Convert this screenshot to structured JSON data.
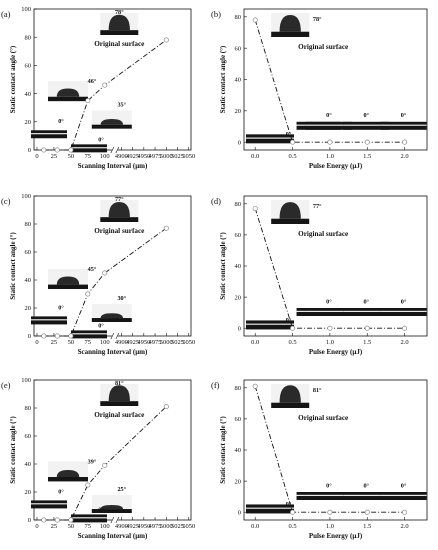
{
  "figure": {
    "line_color": "#111111",
    "photo_colors": {
      "background": "#f2f2f2",
      "droplet": "#2a2a2a",
      "substrate": "#151515"
    }
  },
  "chart_data": [
    {
      "id": "a",
      "panel_label": "(a)",
      "type": "line",
      "xlabel": "Scanning Interval (μm)",
      "ylabel": "Static contact angle (°)",
      "x_axis": "broken",
      "x_ticks_left": [
        "0",
        "25",
        "50",
        "75",
        "100"
      ],
      "x_ticks_right": [
        "4900",
        "4925",
        "4950",
        "4975",
        "5000",
        "5025",
        "5050"
      ],
      "y_ticks": [
        "0",
        "20",
        "40",
        "60",
        "80",
        "100"
      ],
      "ylim": [
        0,
        100
      ],
      "x": [
        10,
        30,
        50,
        75,
        100,
        5000
      ],
      "y": [
        0,
        0,
        0,
        35,
        46,
        78
      ],
      "annotations": {
        "original": "Original surface",
        "labels": [
          "78°",
          "46°",
          "35°",
          "0°",
          "0°"
        ]
      }
    },
    {
      "id": "b",
      "panel_label": "(b)",
      "type": "line",
      "xlabel": "Pulse Energy (μJ)",
      "ylabel": "Static contact angle (°)",
      "x_ticks": [
        "0.0",
        "0.5",
        "1.0",
        "1.5",
        "2.0"
      ],
      "y_ticks": [
        "0",
        "20",
        "40",
        "60",
        "80"
      ],
      "ylim": [
        -5,
        85
      ],
      "xlim": [
        -0.15,
        2.3
      ],
      "x": [
        0.0,
        0.5,
        1.0,
        1.5,
        2.0
      ],
      "y": [
        78,
        0,
        0,
        0,
        0
      ],
      "annotations": {
        "original": "Original surface",
        "labels": [
          "78°",
          "0°",
          "0°",
          "0°",
          "0°"
        ]
      }
    },
    {
      "id": "c",
      "panel_label": "(c)",
      "type": "line",
      "xlabel": "Scanning Interval (μm)",
      "ylabel": "Static contact angle (°)",
      "x_axis": "broken",
      "x_ticks_left": [
        "0",
        "25",
        "50",
        "75",
        "100"
      ],
      "x_ticks_right": [
        "4900",
        "4925",
        "4950",
        "4975",
        "5000",
        "5025",
        "5050"
      ],
      "y_ticks": [
        "0",
        "20",
        "40",
        "60",
        "80",
        "100"
      ],
      "ylim": [
        0,
        100
      ],
      "x": [
        10,
        30,
        50,
        75,
        100,
        5000
      ],
      "y": [
        0,
        0,
        0,
        30,
        45,
        77
      ],
      "annotations": {
        "original": "Original surface",
        "labels": [
          "77°",
          "45°",
          "30°",
          "0°",
          "0°"
        ]
      }
    },
    {
      "id": "d",
      "panel_label": "(d)",
      "type": "line",
      "xlabel": "Pulse Energy (μJ)",
      "ylabel": "Static contact angle (°)",
      "x_ticks": [
        "0.0",
        "0.5",
        "1.0",
        "1.5",
        "2.0"
      ],
      "y_ticks": [
        "0",
        "20",
        "40",
        "60",
        "80"
      ],
      "ylim": [
        -5,
        85
      ],
      "xlim": [
        -0.15,
        2.3
      ],
      "x": [
        0.0,
        0.5,
        1.0,
        1.5,
        2.0
      ],
      "y": [
        77,
        0,
        0,
        0,
        0
      ],
      "annotations": {
        "original": "Original surface",
        "labels": [
          "77°",
          "0°",
          "0°",
          "0°",
          "0°"
        ]
      }
    },
    {
      "id": "e",
      "panel_label": "(e)",
      "type": "line",
      "xlabel": "Scanning Interval (μm)",
      "ylabel": "Static contact angle (°)",
      "x_axis": "broken",
      "x_ticks_left": [
        "0",
        "25",
        "50",
        "75",
        "100"
      ],
      "x_ticks_right": [
        "4900",
        "4925",
        "4950",
        "4975",
        "5000",
        "5025",
        "5050"
      ],
      "y_ticks": [
        "0",
        "20",
        "40",
        "60",
        "80",
        "100"
      ],
      "ylim": [
        0,
        100
      ],
      "x": [
        10,
        30,
        50,
        75,
        100,
        5000
      ],
      "y": [
        0,
        0,
        0,
        25,
        39,
        81
      ],
      "annotations": {
        "original": "Original surface",
        "labels": [
          "81°",
          "39°",
          "25°",
          "0°",
          "0°"
        ]
      }
    },
    {
      "id": "f",
      "panel_label": "(f)",
      "type": "line",
      "xlabel": "Pulse Energy (μJ)",
      "ylabel": "Static contact angle (°)",
      "x_ticks": [
        "0.0",
        "0.5",
        "1.0",
        "1.5",
        "2.0"
      ],
      "y_ticks": [
        "0",
        "20",
        "40",
        "60",
        "80"
      ],
      "ylim": [
        -5,
        85
      ],
      "xlim": [
        -0.15,
        2.3
      ],
      "x": [
        0.0,
        0.5,
        1.0,
        1.5,
        2.0
      ],
      "y": [
        81,
        0,
        0,
        0,
        0
      ],
      "annotations": {
        "original": "Original surface",
        "labels": [
          "81°",
          "0°",
          "0°",
          "0°",
          "0°"
        ]
      }
    }
  ]
}
